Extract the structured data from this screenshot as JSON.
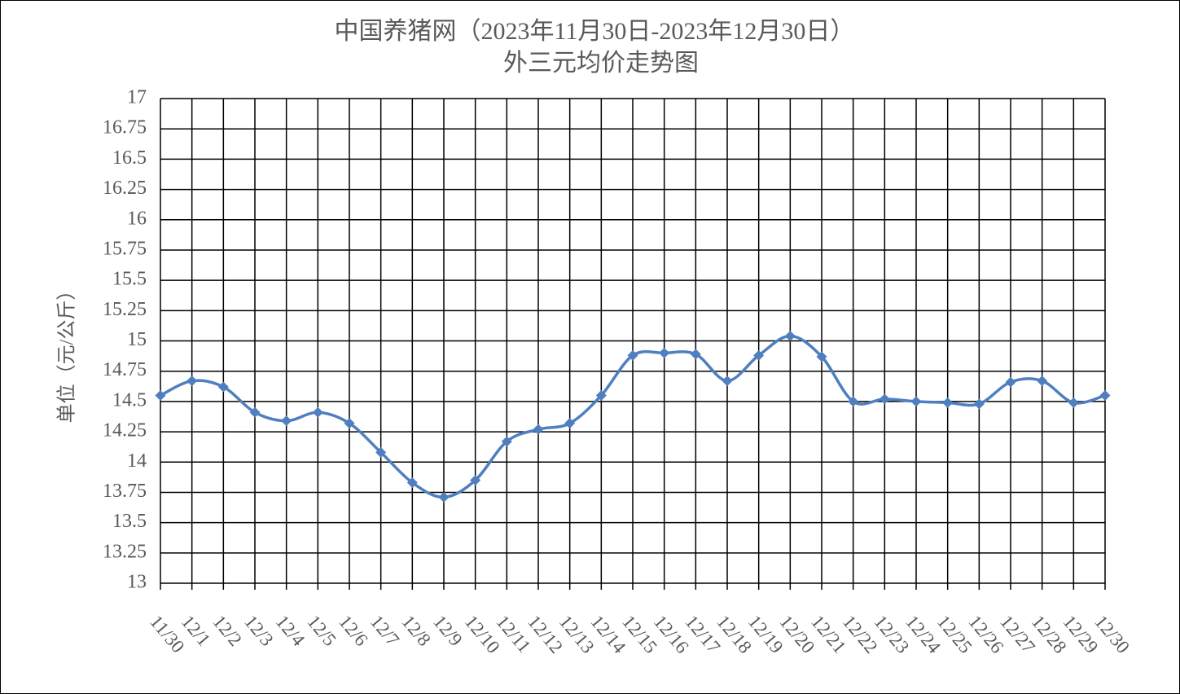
{
  "chart_data": {
    "type": "line",
    "title": "中国养猪网（2023年11月30日-2023年12月30日）",
    "subtitle": "外三元均价走势图",
    "y_label": "单位（元/公斤）",
    "categories": [
      "11/30",
      "12/1",
      "12/2",
      "12/3",
      "12/4",
      "12/5",
      "12/6",
      "12/7",
      "12/8",
      "12/9",
      "12/10",
      "12/11",
      "12/12",
      "12/13",
      "12/14",
      "12/15",
      "12/16",
      "12/17",
      "12/18",
      "12/19",
      "12/20",
      "12/21",
      "12/22",
      "12/23",
      "12/24",
      "12/25",
      "12/26",
      "12/27",
      "12/28",
      "12/29",
      "12/30"
    ],
    "values": [
      14.55,
      14.67,
      14.62,
      14.41,
      14.34,
      14.41,
      14.32,
      14.08,
      13.83,
      13.71,
      13.85,
      14.17,
      14.27,
      14.32,
      14.55,
      14.88,
      14.9,
      14.89,
      14.67,
      14.88,
      15.04,
      14.87,
      14.5,
      14.52,
      14.5,
      14.49,
      14.48,
      14.66,
      14.67,
      14.49,
      14.55
    ],
    "color": "#4f7fbf",
    "ylim": [
      13,
      17
    ],
    "yticks": [
      13,
      13.25,
      13.5,
      13.75,
      14,
      14.25,
      14.5,
      14.75,
      15,
      15.25,
      15.5,
      15.75,
      16,
      16.25,
      16.5,
      16.75,
      17
    ],
    "grid": true,
    "smooth": true
  }
}
